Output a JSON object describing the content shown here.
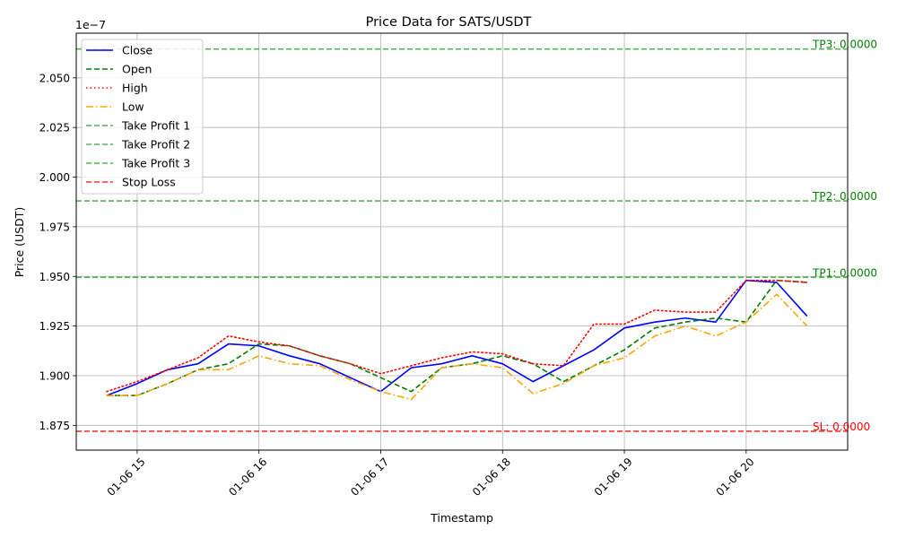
{
  "chart_data": {
    "type": "line",
    "title": "Price Data for SATS/USDT",
    "xlabel": "Timestamp",
    "ylabel": "Price (USDT)",
    "y_offset_text": "1e−7",
    "y_scale": 1e-07,
    "xlim": [
      "2024-01-06 14:30",
      "2024-01-06 20:50"
    ],
    "ylim": [
      1.8625e-07,
      2.0725e-07
    ],
    "grid": true,
    "legend_position": "top-left",
    "x_ticks": [
      {
        "t": "2024-01-06 15:00",
        "label": "01-06 15"
      },
      {
        "t": "2024-01-06 16:00",
        "label": "01-06 16"
      },
      {
        "t": "2024-01-06 17:00",
        "label": "01-06 17"
      },
      {
        "t": "2024-01-06 18:00",
        "label": "01-06 18"
      },
      {
        "t": "2024-01-06 19:00",
        "label": "01-06 19"
      },
      {
        "t": "2024-01-06 20:00",
        "label": "01-06 20"
      }
    ],
    "y_ticks": [
      {
        "v": 1.875e-07,
        "label": "1.875"
      },
      {
        "v": 1.9e-07,
        "label": "1.900"
      },
      {
        "v": 1.925e-07,
        "label": "1.925"
      },
      {
        "v": 1.95e-07,
        "label": "1.950"
      },
      {
        "v": 1.975e-07,
        "label": "1.975"
      },
      {
        "v": 2e-07,
        "label": "2.000"
      },
      {
        "v": 2.025e-07,
        "label": "2.025"
      },
      {
        "v": 2.05e-07,
        "label": "2.050"
      }
    ],
    "x": [
      "2024-01-06 14:45",
      "2024-01-06 15:00",
      "2024-01-06 15:15",
      "2024-01-06 15:30",
      "2024-01-06 15:45",
      "2024-01-06 16:00",
      "2024-01-06 16:15",
      "2024-01-06 16:30",
      "2024-01-06 16:45",
      "2024-01-06 17:00",
      "2024-01-06 17:15",
      "2024-01-06 17:30",
      "2024-01-06 17:45",
      "2024-01-06 18:00",
      "2024-01-06 18:15",
      "2024-01-06 18:30",
      "2024-01-06 18:45",
      "2024-01-06 19:00",
      "2024-01-06 19:15",
      "2024-01-06 19:30",
      "2024-01-06 19:45",
      "2024-01-06 20:00",
      "2024-01-06 20:15",
      "2024-01-06 20:30"
    ],
    "series": [
      {
        "name": "Close",
        "color": "#0000ff",
        "dash": "solid",
        "values": [
          1.89e-07,
          1.896e-07,
          1.903e-07,
          1.906e-07,
          1.916e-07,
          1.915e-07,
          1.91e-07,
          1.906e-07,
          1.899e-07,
          1.892e-07,
          1.904e-07,
          1.906e-07,
          1.91e-07,
          1.906e-07,
          1.897e-07,
          1.905e-07,
          1.913e-07,
          1.924e-07,
          1.927e-07,
          1.929e-07,
          1.927e-07,
          1.948e-07,
          1.947e-07,
          1.93e-07
        ]
      },
      {
        "name": "Open",
        "color": "#008000",
        "dash": "dashed",
        "values": [
          1.89e-07,
          1.89e-07,
          1.896e-07,
          1.903e-07,
          1.906e-07,
          1.916e-07,
          1.915e-07,
          1.91e-07,
          1.906e-07,
          1.899e-07,
          1.892e-07,
          1.904e-07,
          1.906e-07,
          1.91e-07,
          1.906e-07,
          1.897e-07,
          1.905e-07,
          1.913e-07,
          1.924e-07,
          1.927e-07,
          1.929e-07,
          1.927e-07,
          1.948e-07,
          1.947e-07
        ]
      },
      {
        "name": "High",
        "color": "#ff0000",
        "dash": "dotted",
        "values": [
          1.892e-07,
          1.897e-07,
          1.903e-07,
          1.909e-07,
          1.92e-07,
          1.917e-07,
          1.915e-07,
          1.91e-07,
          1.906e-07,
          1.901e-07,
          1.905e-07,
          1.909e-07,
          1.912e-07,
          1.911e-07,
          1.906e-07,
          1.905e-07,
          1.926e-07,
          1.926e-07,
          1.933e-07,
          1.932e-07,
          1.932e-07,
          1.948e-07,
          1.948e-07,
          1.947e-07
        ]
      },
      {
        "name": "Low",
        "color": "#ffa500",
        "dash": "dashdot",
        "values": [
          1.89e-07,
          1.89e-07,
          1.896e-07,
          1.903e-07,
          1.903e-07,
          1.91e-07,
          1.906e-07,
          1.905e-07,
          1.898e-07,
          1.892e-07,
          1.888e-07,
          1.904e-07,
          1.906e-07,
          1.904e-07,
          1.891e-07,
          1.896e-07,
          1.905e-07,
          1.909e-07,
          1.92e-07,
          1.925e-07,
          1.92e-07,
          1.927e-07,
          1.941e-07,
          1.925e-07
        ]
      }
    ],
    "hlines": [
      {
        "name": "Take Profit 1",
        "value": 1.9495e-07,
        "color": "#2ca02c",
        "label": "TP1: 0.0000"
      },
      {
        "name": "Take Profit 2",
        "value": 1.988e-07,
        "color": "#2ca02c",
        "label": "TP2: 0.0000"
      },
      {
        "name": "Take Profit 3",
        "value": 2.0645e-07,
        "color": "#2ca02c",
        "label": "TP3: 0.0000"
      },
      {
        "name": "Stop Loss",
        "value": 1.872e-07,
        "color": "#ff0000",
        "label": "SL: 0.0000"
      }
    ],
    "hline_label_colors": {
      "take_profit": "#008000",
      "stop_loss": "#ff0000"
    }
  }
}
